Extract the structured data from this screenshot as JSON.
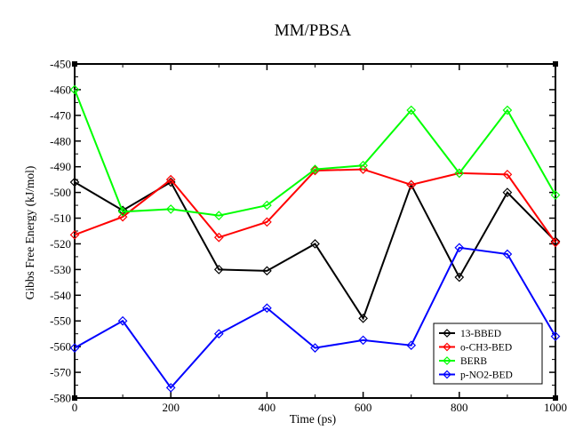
{
  "chart_data": {
    "type": "line",
    "title": "MM/PBSA",
    "xlabel": "Time (ps)",
    "ylabel": "Gibbs Free Energy (kJ/mol)",
    "xlim": [
      0,
      1000
    ],
    "ylim": [
      -580,
      -450
    ],
    "x_ticks": [
      "0",
      "200",
      "400",
      "600",
      "800",
      "1000"
    ],
    "y_ticks": [
      "-450",
      "-460",
      "-470",
      "-480",
      "-490",
      "-500",
      "-510",
      "-520",
      "-530",
      "-540",
      "-550",
      "-560",
      "-570",
      "-580"
    ],
    "grid": false,
    "legend_position": "bottom-right",
    "x": [
      0,
      100,
      200,
      300,
      400,
      500,
      600,
      700,
      800,
      900,
      1000
    ],
    "series": [
      {
        "name": "13-BBED",
        "color": "#000000",
        "marker": "diamond",
        "values": [
          -496,
          -507,
          -496,
          -530,
          -530.5,
          -520,
          -549,
          -497,
          -533,
          -500,
          -519
        ]
      },
      {
        "name": "o-CH3-BED",
        "color": "#ff0000",
        "marker": "diamond",
        "values": [
          -516.5,
          -509.5,
          -495,
          -517.5,
          -511.5,
          -491.5,
          -491,
          -497,
          -492.5,
          -493,
          -519.5
        ]
      },
      {
        "name": "BERB",
        "color": "#00ff00",
        "marker": "diamond",
        "values": [
          -460,
          -507.5,
          -506.5,
          -509,
          -505,
          -491,
          -489.5,
          -468,
          -492.5,
          -468,
          -501
        ]
      },
      {
        "name": "p-NO2-BED",
        "color": "#0000ff",
        "marker": "diamond",
        "values": [
          -560.5,
          -550,
          -576,
          -555,
          -545,
          -560.5,
          -557.5,
          -559.5,
          -521.5,
          -524,
          -556
        ]
      }
    ]
  }
}
